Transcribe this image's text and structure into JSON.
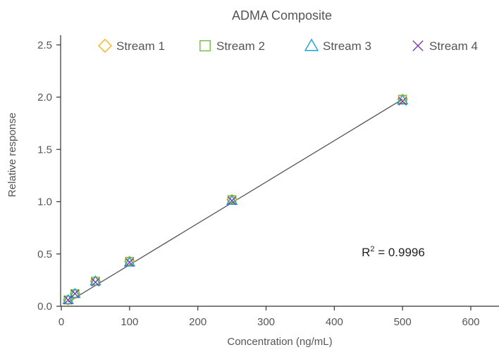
{
  "chart_data": {
    "type": "scatter",
    "title": "ADMA Composite",
    "xlabel": "Concentration (ng/mL)",
    "ylabel": "Relative response",
    "xlim": [
      0,
      650
    ],
    "ylim": [
      0,
      2.7
    ],
    "xticks": [
      0,
      100,
      200,
      300,
      400,
      500,
      600
    ],
    "yticks": [
      0.0,
      0.5,
      1.0,
      1.5,
      2.0,
      2.5
    ],
    "xtick_labels": [
      "0",
      "100",
      "200",
      "300",
      "400",
      "500",
      "600"
    ],
    "ytick_labels": [
      "0.0",
      "0.5",
      "1.0",
      "1.5",
      "2.0",
      "2.5"
    ],
    "grid": false,
    "legend_position": "top",
    "series": [
      {
        "name": "Stream 1",
        "marker": "diamond",
        "color": "#F5B21B",
        "x": [
          10,
          20,
          50,
          100,
          250,
          500
        ],
        "y": [
          0.06,
          0.12,
          0.24,
          0.43,
          1.02,
          1.98
        ]
      },
      {
        "name": "Stream 2",
        "marker": "square",
        "color": "#72BE44",
        "x": [
          10,
          20,
          50,
          100,
          250,
          500
        ],
        "y": [
          0.06,
          0.12,
          0.24,
          0.43,
          1.02,
          1.98
        ]
      },
      {
        "name": "Stream 3",
        "marker": "triangle",
        "color": "#1CA0DC",
        "x": [
          10,
          20,
          50,
          100,
          250,
          500
        ],
        "y": [
          0.06,
          0.12,
          0.24,
          0.42,
          1.01,
          1.97
        ]
      },
      {
        "name": "Stream 4",
        "marker": "x",
        "color": "#7B3FA0",
        "x": [
          10,
          20,
          50,
          100,
          250,
          500
        ],
        "y": [
          0.06,
          0.12,
          0.23,
          0.42,
          1.01,
          1.96
        ]
      }
    ],
    "fit_line": {
      "x": [
        10,
        500
      ],
      "y": [
        0.04,
        1.98
      ],
      "color": "#555555"
    },
    "annotation": {
      "prefix": "R",
      "superscript": "2",
      "text": " = 0.9996",
      "x": 440,
      "y": 0.52
    },
    "axis_color": "#333333"
  }
}
